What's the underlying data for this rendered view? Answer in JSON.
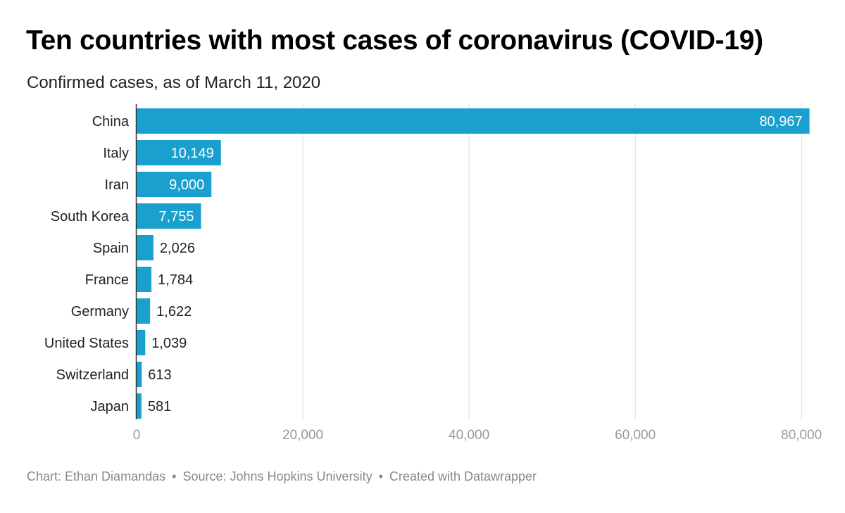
{
  "title": "Ten countries with most cases of coronavirus (COVID-19)",
  "subtitle": "Confirmed cases, as of March 11, 2020",
  "footer": {
    "chart_credit": "Chart: Ethan Diamandas",
    "source": "Source: Johns Hopkins University",
    "created_with": "Created with Datawrapper",
    "separator": "•"
  },
  "colors": {
    "bar": "#1aa0cf",
    "grid": "#dddddd",
    "axis_line": "#333333",
    "tick_label": "#9a9a9a",
    "label_inside": "#ffffff",
    "label_outside": "#222222"
  },
  "chart_data": {
    "type": "bar",
    "orientation": "horizontal",
    "title": "Ten countries with most cases of coronavirus (COVID-19)",
    "subtitle": "Confirmed cases, as of March 11, 2020",
    "categories": [
      "China",
      "Italy",
      "Iran",
      "South Korea",
      "Spain",
      "France",
      "Germany",
      "United States",
      "Switzerland",
      "Japan"
    ],
    "values": [
      80967,
      10149,
      9000,
      7755,
      2026,
      1784,
      1622,
      1039,
      613,
      581
    ],
    "value_labels": [
      "80,967",
      "10,149",
      "9,000",
      "7,755",
      "2,026",
      "1,784",
      "1,622",
      "1,039",
      "613",
      "581"
    ],
    "xlim": [
      0,
      81000
    ],
    "x_ticks": [
      0,
      20000,
      40000,
      60000,
      80000
    ],
    "x_tick_labels": [
      "0",
      "20,000",
      "40,000",
      "60,000",
      "80,000"
    ],
    "grid": true,
    "xlabel": "",
    "ylabel": ""
  }
}
